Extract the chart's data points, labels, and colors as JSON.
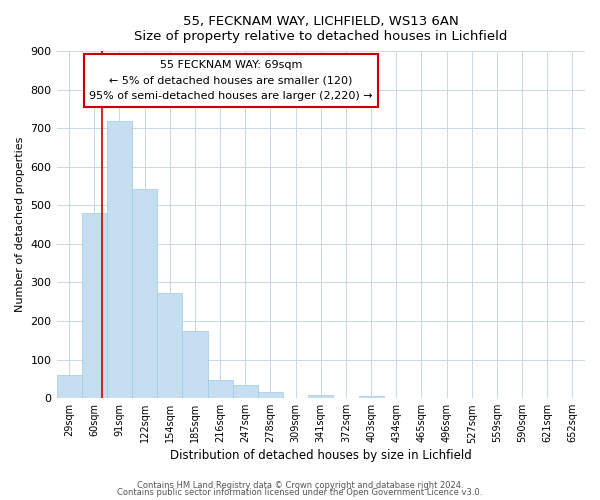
{
  "title1": "55, FECKNAM WAY, LICHFIELD, WS13 6AN",
  "title2": "Size of property relative to detached houses in Lichfield",
  "xlabel": "Distribution of detached houses by size in Lichfield",
  "ylabel": "Number of detached properties",
  "bar_labels": [
    "29sqm",
    "60sqm",
    "91sqm",
    "122sqm",
    "154sqm",
    "185sqm",
    "216sqm",
    "247sqm",
    "278sqm",
    "309sqm",
    "341sqm",
    "372sqm",
    "403sqm",
    "434sqm",
    "465sqm",
    "496sqm",
    "527sqm",
    "559sqm",
    "590sqm",
    "621sqm",
    "652sqm"
  ],
  "bar_values": [
    60,
    480,
    718,
    543,
    272,
    173,
    48,
    35,
    15,
    0,
    8,
    0,
    5,
    0,
    0,
    0,
    0,
    0,
    0,
    0,
    0
  ],
  "bar_color": "#c6dff0",
  "bar_edge_color": "#a0c8e8",
  "vline_color": "#cc0000",
  "annotation_line1": "55 FECKNAM WAY: 69sqm",
  "annotation_line2": "← 5% of detached houses are smaller (120)",
  "annotation_line3": "95% of semi-detached houses are larger (2,220) →",
  "ylim": [
    0,
    900
  ],
  "yticks": [
    0,
    100,
    200,
    300,
    400,
    500,
    600,
    700,
    800,
    900
  ],
  "footer1": "Contains HM Land Registry data © Crown copyright and database right 2024.",
  "footer2": "Contains public sector information licensed under the Open Government Licence v3.0.",
  "bg_color": "#ffffff",
  "plot_bg_color": "#ffffff",
  "grid_color": "#c8d8e8"
}
